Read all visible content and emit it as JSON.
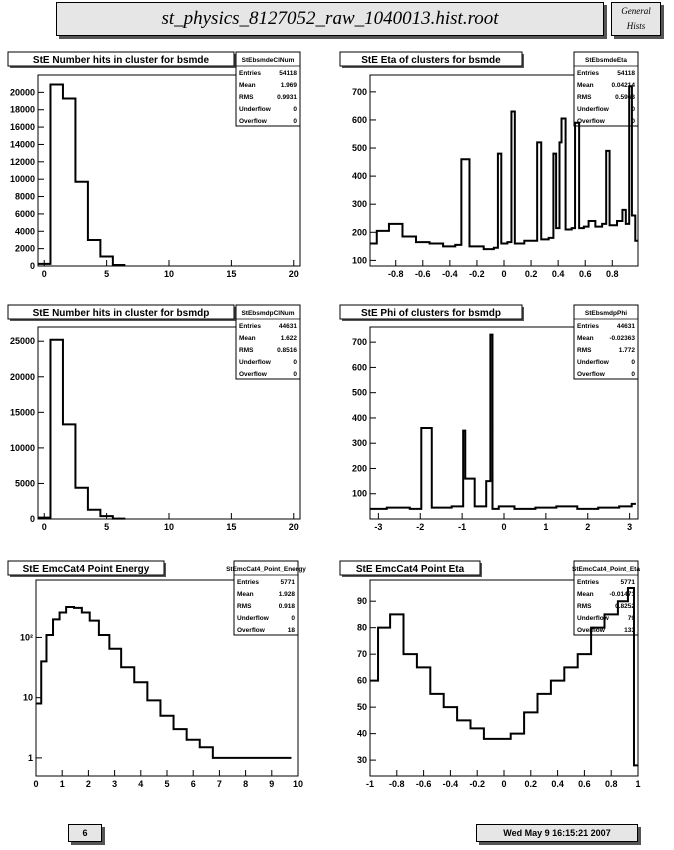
{
  "header": {
    "title": "st_physics_8127052_raw_1040013.hist.root",
    "tag_line1": "General",
    "tag_line2": "Hists"
  },
  "footer": {
    "page": "6",
    "timestamp": "Wed May  9 16:15:21 2007"
  },
  "stat_labels": [
    "Entries",
    "Mean",
    "RMS",
    "Underflow",
    "Overflow"
  ],
  "chart_data": [
    {
      "type": "bar",
      "title": "StE Number hits in cluster for bsmde",
      "stats_name": "StEbsmdeClNum",
      "stats": [
        "54118",
        "1.969",
        "0.9931",
        "0",
        "0"
      ],
      "xlim": [
        -0.5,
        20.5
      ],
      "ylim": [
        0,
        22000
      ],
      "log": false,
      "xticks": [
        0,
        5,
        10,
        15,
        20
      ],
      "yticks": [
        0,
        2000,
        4000,
        6000,
        8000,
        10000,
        12000,
        14000,
        16000,
        18000,
        20000
      ],
      "x": [
        0,
        1,
        2,
        3,
        4,
        5,
        6
      ],
      "values": [
        250,
        20900,
        19300,
        9700,
        3000,
        1100,
        120
      ]
    },
    {
      "type": "line",
      "title": "StE Eta of clusters for bsmde",
      "stats_name": "StEbsmdeEta",
      "stats": [
        "54118",
        "0.04214",
        "0.5963",
        "0",
        "0"
      ],
      "xlim": [
        -0.99,
        0.99
      ],
      "ylim": [
        80,
        760
      ],
      "log": false,
      "xticks": [
        -0.8,
        -0.6,
        -0.4,
        -0.2,
        0,
        0.2,
        0.4,
        0.6,
        0.8
      ],
      "yticks": [
        100,
        200,
        300,
        400,
        500,
        600,
        700
      ],
      "x": [
        -0.98,
        -0.9,
        -0.8,
        -0.7,
        -0.6,
        -0.5,
        -0.4,
        -0.32,
        -0.31,
        -0.2,
        -0.1,
        -0.05,
        -0.04,
        0.0,
        0.05,
        0.06,
        0.1,
        0.2,
        0.24,
        0.25,
        0.3,
        0.36,
        0.37,
        0.4,
        0.42,
        0.43,
        0.48,
        0.52,
        0.53,
        0.58,
        0.6,
        0.65,
        0.7,
        0.75,
        0.76,
        0.8,
        0.87,
        0.88,
        0.92,
        0.93,
        0.96,
        0.98
      ],
      "values": [
        160,
        205,
        230,
        185,
        165,
        160,
        150,
        155,
        460,
        150,
        140,
        145,
        480,
        160,
        165,
        630,
        160,
        170,
        170,
        520,
        175,
        180,
        480,
        215,
        520,
        605,
        210,
        215,
        590,
        215,
        220,
        240,
        220,
        230,
        490,
        225,
        240,
        280,
        230,
        720,
        260,
        170
      ]
    },
    {
      "type": "bar",
      "title": "StE Number hits in cluster for bsmdp",
      "stats_name": "StEbsmdpClNum",
      "stats": [
        "44631",
        "1.622",
        "0.8516",
        "0",
        "0"
      ],
      "xlim": [
        -0.5,
        20.5
      ],
      "ylim": [
        0,
        27000
      ],
      "log": false,
      "xticks": [
        0,
        5,
        10,
        15,
        20
      ],
      "yticks": [
        0,
        5000,
        10000,
        15000,
        20000,
        25000
      ],
      "x": [
        0,
        1,
        2,
        3,
        4,
        5,
        6
      ],
      "values": [
        200,
        25200,
        13300,
        4400,
        1300,
        400,
        60
      ]
    },
    {
      "type": "line",
      "title": "StE Phi of clusters for bsmdp",
      "stats_name": "StEbsmdpPhi",
      "stats": [
        "44631",
        "-0.02363",
        "1.772",
        "0",
        "0"
      ],
      "xlim": [
        -3.2,
        3.2
      ],
      "ylim": [
        0,
        760
      ],
      "log": false,
      "xticks": [
        -3,
        -2,
        -1,
        0,
        1,
        2,
        3
      ],
      "yticks": [
        100,
        200,
        300,
        400,
        500,
        600,
        700
      ],
      "x": [
        -3.1,
        -2.5,
        -2.0,
        -1.95,
        -1.5,
        -1.0,
        -0.95,
        -0.9,
        -0.5,
        -0.35,
        -0.3,
        -0.25,
        0,
        0.5,
        1.0,
        1.5,
        2.0,
        2.5,
        3.0,
        3.1
      ],
      "values": [
        40,
        45,
        40,
        360,
        45,
        50,
        350,
        160,
        50,
        150,
        730,
        40,
        50,
        40,
        45,
        50,
        40,
        45,
        50,
        60
      ]
    },
    {
      "type": "line",
      "title": "StE EmcCat4 Point Energy",
      "stats_name": "StEmcCat4_Point_Energy",
      "stats": [
        "5771",
        "1.928",
        "0.918",
        "0",
        "18"
      ],
      "xlim": [
        0,
        10
      ],
      "ylim": [
        0.5,
        900
      ],
      "log": true,
      "xticks": [
        0,
        1,
        2,
        3,
        4,
        5,
        6,
        7,
        8,
        9,
        10
      ],
      "yticks": [
        1,
        10,
        100
      ],
      "ytick_labels": [
        "1",
        "10",
        "10²"
      ],
      "x": [
        0.1,
        0.3,
        0.5,
        0.8,
        1.0,
        1.3,
        1.6,
        1.9,
        2.2,
        2.6,
        3.0,
        3.5,
        4.0,
        4.5,
        5.0,
        5.5,
        6.0,
        6.5,
        7.0,
        7.5,
        8.0,
        8.5,
        9.0,
        9.5
      ],
      "values": [
        8,
        40,
        110,
        200,
        260,
        320,
        310,
        260,
        190,
        110,
        65,
        32,
        18,
        9,
        5,
        3,
        2,
        1.5,
        1,
        1,
        1,
        1,
        1,
        1
      ]
    },
    {
      "type": "line",
      "title": "StE EmcCat4 Point Eta",
      "stats_name": "StEmcCat4_Point_Eta",
      "stats": [
        "5771",
        "-0.01471",
        "0.8252",
        "79",
        "133"
      ],
      "xlim": [
        -1,
        1
      ],
      "ylim": [
        24,
        98
      ],
      "log": false,
      "xticks": [
        -1,
        -0.8,
        -0.6,
        -0.4,
        -0.2,
        0,
        0.2,
        0.4,
        0.6,
        0.8,
        1
      ],
      "yticks": [
        30,
        40,
        50,
        60,
        70,
        80,
        90
      ],
      "x": [
        -0.98,
        -0.9,
        -0.8,
        -0.7,
        -0.6,
        -0.5,
        -0.4,
        -0.3,
        -0.2,
        -0.1,
        0.0,
        0.1,
        0.2,
        0.3,
        0.4,
        0.5,
        0.6,
        0.7,
        0.8,
        0.9,
        0.95,
        0.99
      ],
      "values": [
        60,
        80,
        85,
        70,
        65,
        55,
        50,
        45,
        42,
        38,
        38,
        40,
        48,
        55,
        60,
        65,
        70,
        80,
        85,
        90,
        95,
        28
      ]
    }
  ]
}
